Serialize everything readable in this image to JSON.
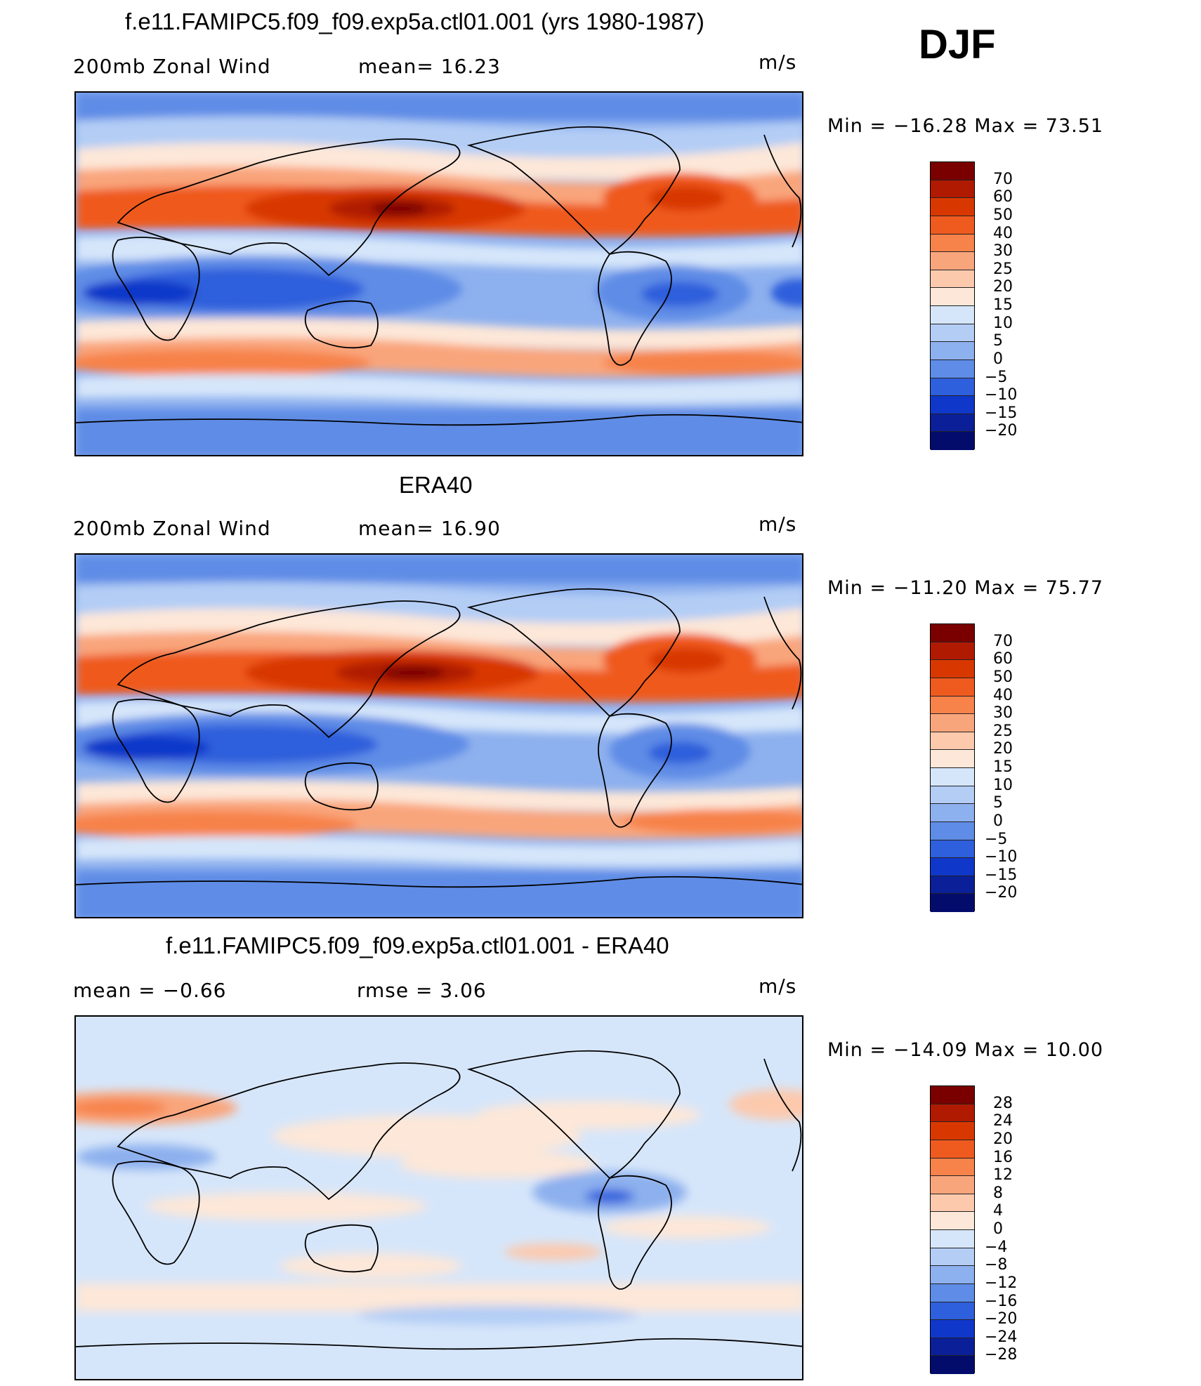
{
  "season": "DJF",
  "panels": [
    {
      "title": "f.e11.FAMIPC5.f09_f09.exp5a.ctl01.001 (yrs 1980-1987)",
      "left_label": "200mb  Zonal  Wind",
      "mid_label": "mean=   16.23",
      "units": "m/s",
      "minmax": "Min  =  −16.28  Max  =    73.51",
      "colorbar": {
        "labels": [
          "70",
          "60",
          "50",
          "40",
          "30",
          "25",
          "20",
          "15",
          "10",
          "5",
          "0",
          "−5",
          "−10",
          "−15",
          "−20"
        ],
        "colors": [
          "#7a0000",
          "#b01a00",
          "#d83800",
          "#ef5a1f",
          "#f7824a",
          "#f9a57c",
          "#fcc9ad",
          "#fde7d8",
          "#d6e6fa",
          "#b3cdf5",
          "#8db0ee",
          "#5e8ce6",
          "#2e5fdc",
          "#0f37c9",
          "#0a1f98",
          "#030c6b"
        ]
      }
    },
    {
      "title": "ERA40",
      "left_label": "200mb  Zonal  Wind",
      "mid_label": "mean=   16.90",
      "units": "m/s",
      "minmax": "Min  =  −11.20  Max  =    75.77",
      "colorbar": {
        "labels": [
          "70",
          "60",
          "50",
          "40",
          "30",
          "25",
          "20",
          "15",
          "10",
          "5",
          "0",
          "−5",
          "−10",
          "−15",
          "−20"
        ],
        "colors": [
          "#7a0000",
          "#b01a00",
          "#d83800",
          "#ef5a1f",
          "#f7824a",
          "#f9a57c",
          "#fcc9ad",
          "#fde7d8",
          "#d6e6fa",
          "#b3cdf5",
          "#8db0ee",
          "#5e8ce6",
          "#2e5fdc",
          "#0f37c9",
          "#0a1f98",
          "#030c6b"
        ]
      }
    },
    {
      "title": "f.e11.FAMIPC5.f09_f09.exp5a.ctl01.001 - ERA40",
      "left_label": "mean  =    −0.66",
      "mid_label": "rmse  =     3.06",
      "units": "m/s",
      "minmax": "Min  =  −14.09  Max  =    10.00",
      "colorbar": {
        "labels": [
          "28",
          "24",
          "20",
          "16",
          "12",
          "8",
          "4",
          "0",
          "−4",
          "−8",
          "−12",
          "−16",
          "−20",
          "−24",
          "−28"
        ],
        "colors": [
          "#7a0000",
          "#b01a00",
          "#d83800",
          "#ef5a1f",
          "#f7824a",
          "#f9a57c",
          "#fcc9ad",
          "#fde7d8",
          "#d6e6fa",
          "#b3cdf5",
          "#8db0ee",
          "#5e8ce6",
          "#2e5fdc",
          "#0f37c9",
          "#0a1f98",
          "#030c6b"
        ]
      }
    }
  ]
}
